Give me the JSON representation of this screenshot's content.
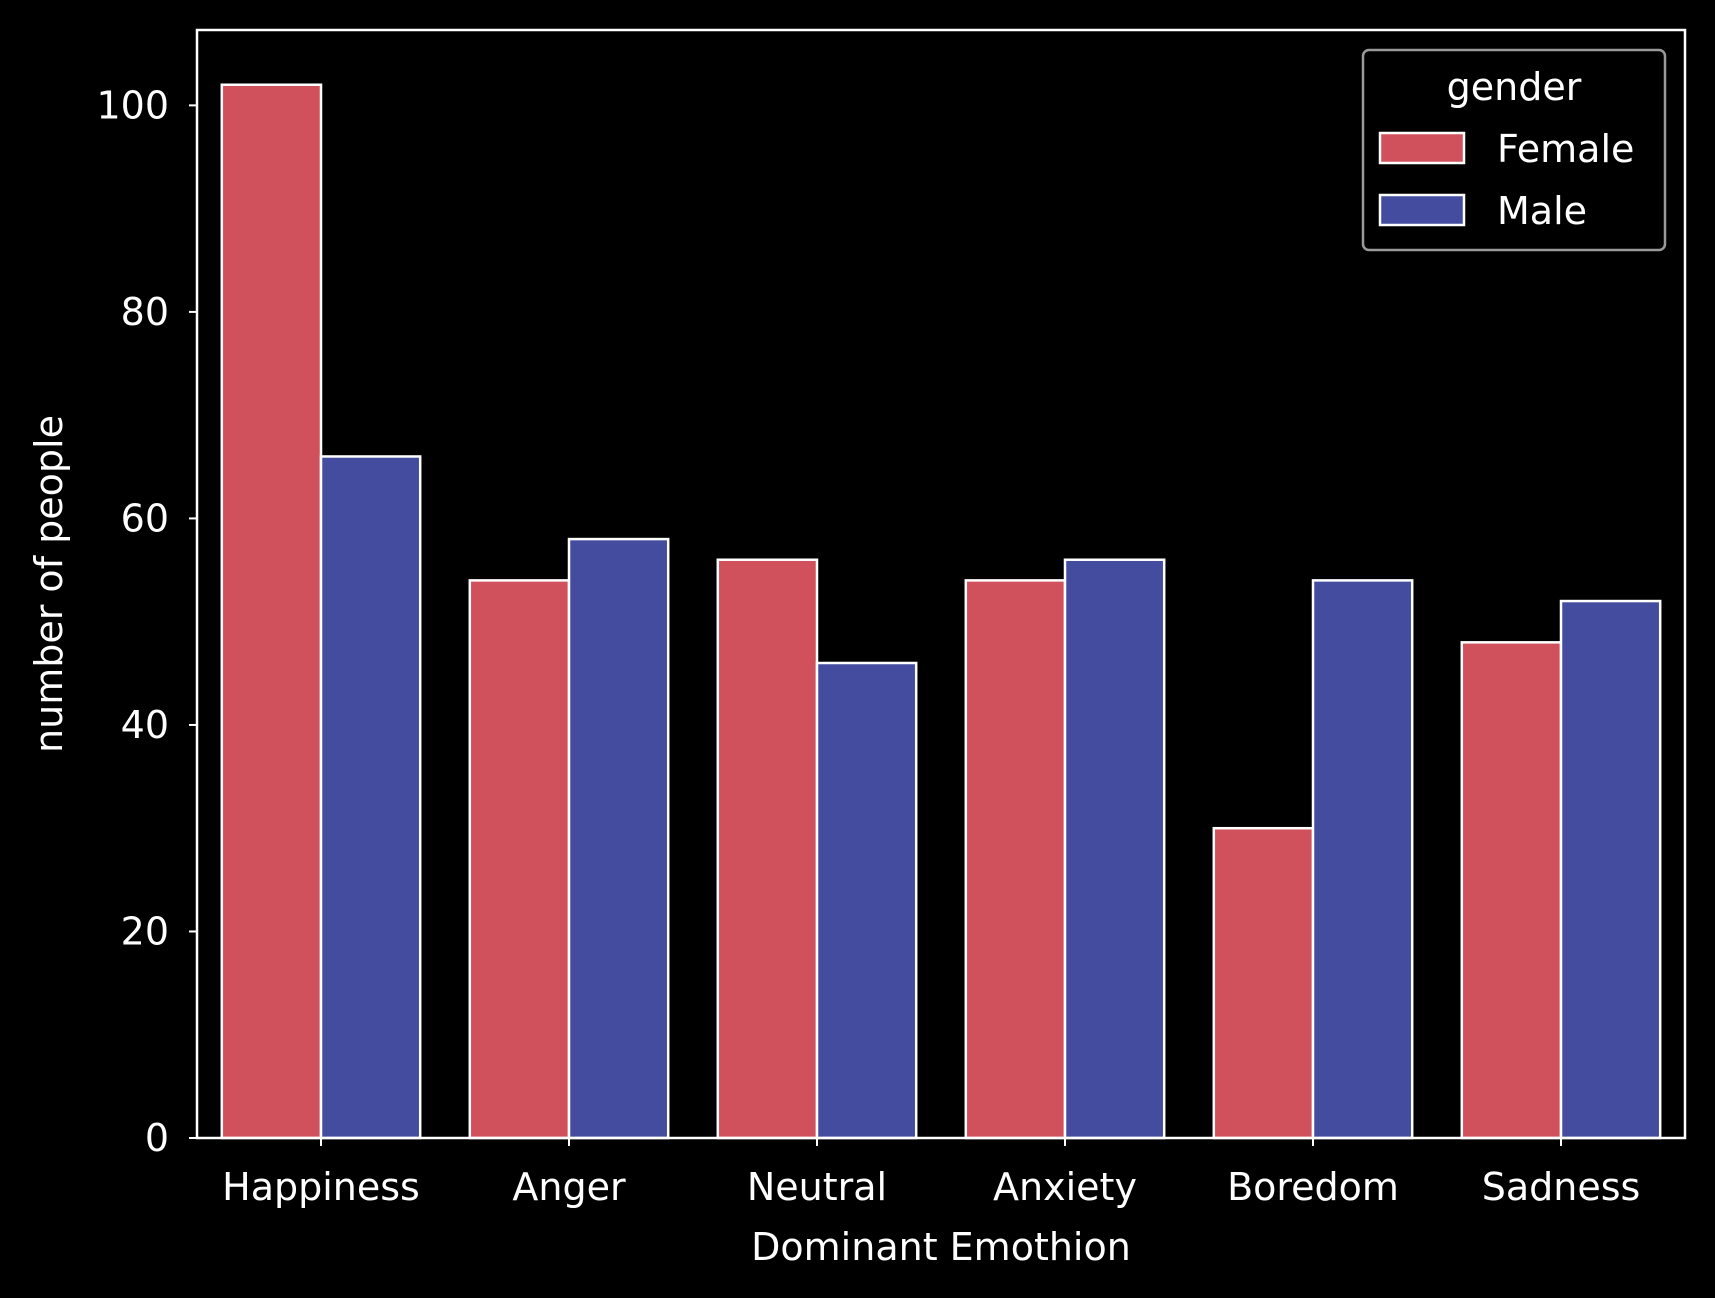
{
  "chart_data": {
    "type": "bar",
    "title": "",
    "xlabel": "Dominant Emothion",
    "ylabel": "number of people",
    "categories": [
      "Happiness",
      "Anger",
      "Neutral",
      "Anxiety",
      "Boredom",
      "Sadness"
    ],
    "series": [
      {
        "name": "Female",
        "color": "#d0505c",
        "values": [
          102,
          54,
          56,
          54,
          30,
          48
        ]
      },
      {
        "name": "Male",
        "color": "#444ca0",
        "values": [
          66,
          58,
          46,
          56,
          54,
          52
        ]
      }
    ],
    "ylim": [
      0,
      107.3
    ],
    "yticks": [
      0,
      20,
      40,
      60,
      80,
      100
    ],
    "grid": false,
    "legend": {
      "title": "gender",
      "placement": "top-right"
    },
    "background": "#000000",
    "foreground": "#ffffff",
    "bar_edge_color": "#ffffff"
  }
}
